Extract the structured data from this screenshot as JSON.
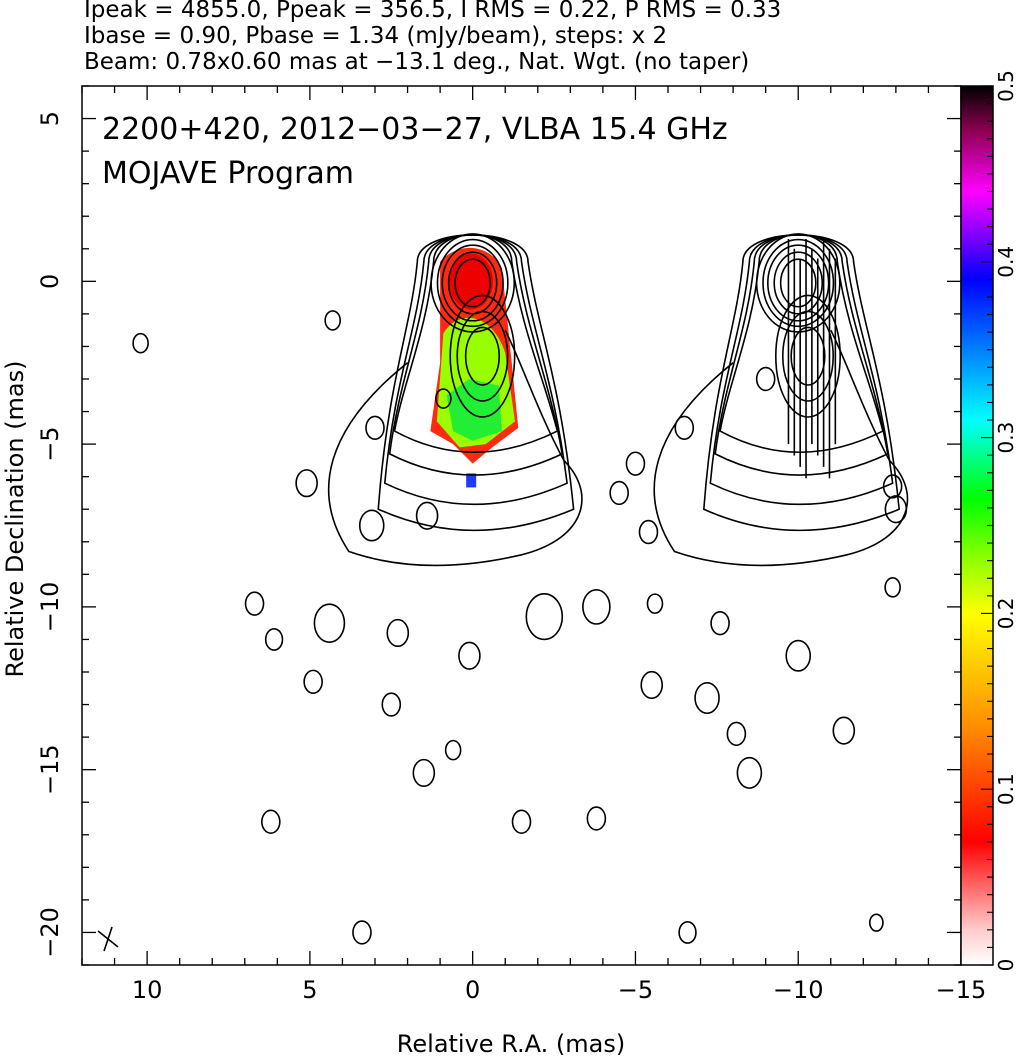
{
  "header": {
    "line1": "Ipeak = 4855.0, Ppeak = 356.5, I RMS = 0.22, P RMS = 0.33",
    "line2": "Ibase = 0.90, Pbase = 1.34 (mJy/beam), steps: x 2",
    "line3": "Beam: 0.78x0.60 mas at −13.1 deg., Nat. Wgt. (no taper)"
  },
  "plot": {
    "title_line1": "2200+420, 2012−03−27, VLBA 15.4 GHz",
    "title_line2": "MOJAVE Program"
  },
  "chart_data": {
    "type": "contour",
    "xlabel": "Relative R.A. (mas)",
    "ylabel": "Relative Declination (mas)",
    "xlim": [
      12,
      -15
    ],
    "ylim": [
      -21,
      6
    ],
    "x_ticks": [
      10,
      5,
      0,
      -5,
      -10,
      -15
    ],
    "x_tick_labels": [
      "10",
      "5",
      "0",
      "−5",
      "−10",
      "−15"
    ],
    "y_ticks": [
      5,
      0,
      -5,
      -10,
      -15,
      -20
    ],
    "y_tick_labels": [
      "5",
      "0",
      "−5",
      "−10",
      "−15",
      "−20"
    ],
    "colorbar": {
      "range": [
        0,
        0.5
      ],
      "ticks": [
        0,
        0.1,
        0.2,
        0.3,
        0.4,
        0.5
      ],
      "tick_labels": [
        "0",
        "0.1",
        "0.2",
        "0.3",
        "0.4",
        "0.5"
      ],
      "colors": [
        "#ffffff",
        "#ff0000",
        "#ff8c00",
        "#ffff00",
        "#00ff00",
        "#00ffff",
        "#0000ff",
        "#ff00ff",
        "#000000"
      ]
    },
    "panels": [
      {
        "name": "Total intensity with fractional polarization",
        "x_center": 0,
        "y_center": 0
      },
      {
        "name": "Total intensity with EVPA ticks",
        "x_center": -10,
        "y_center": 0
      }
    ],
    "core_contour_levels_mjy_per_beam_base": 0.9,
    "contour_step": 2,
    "peak_intensity": 4855.0
  }
}
